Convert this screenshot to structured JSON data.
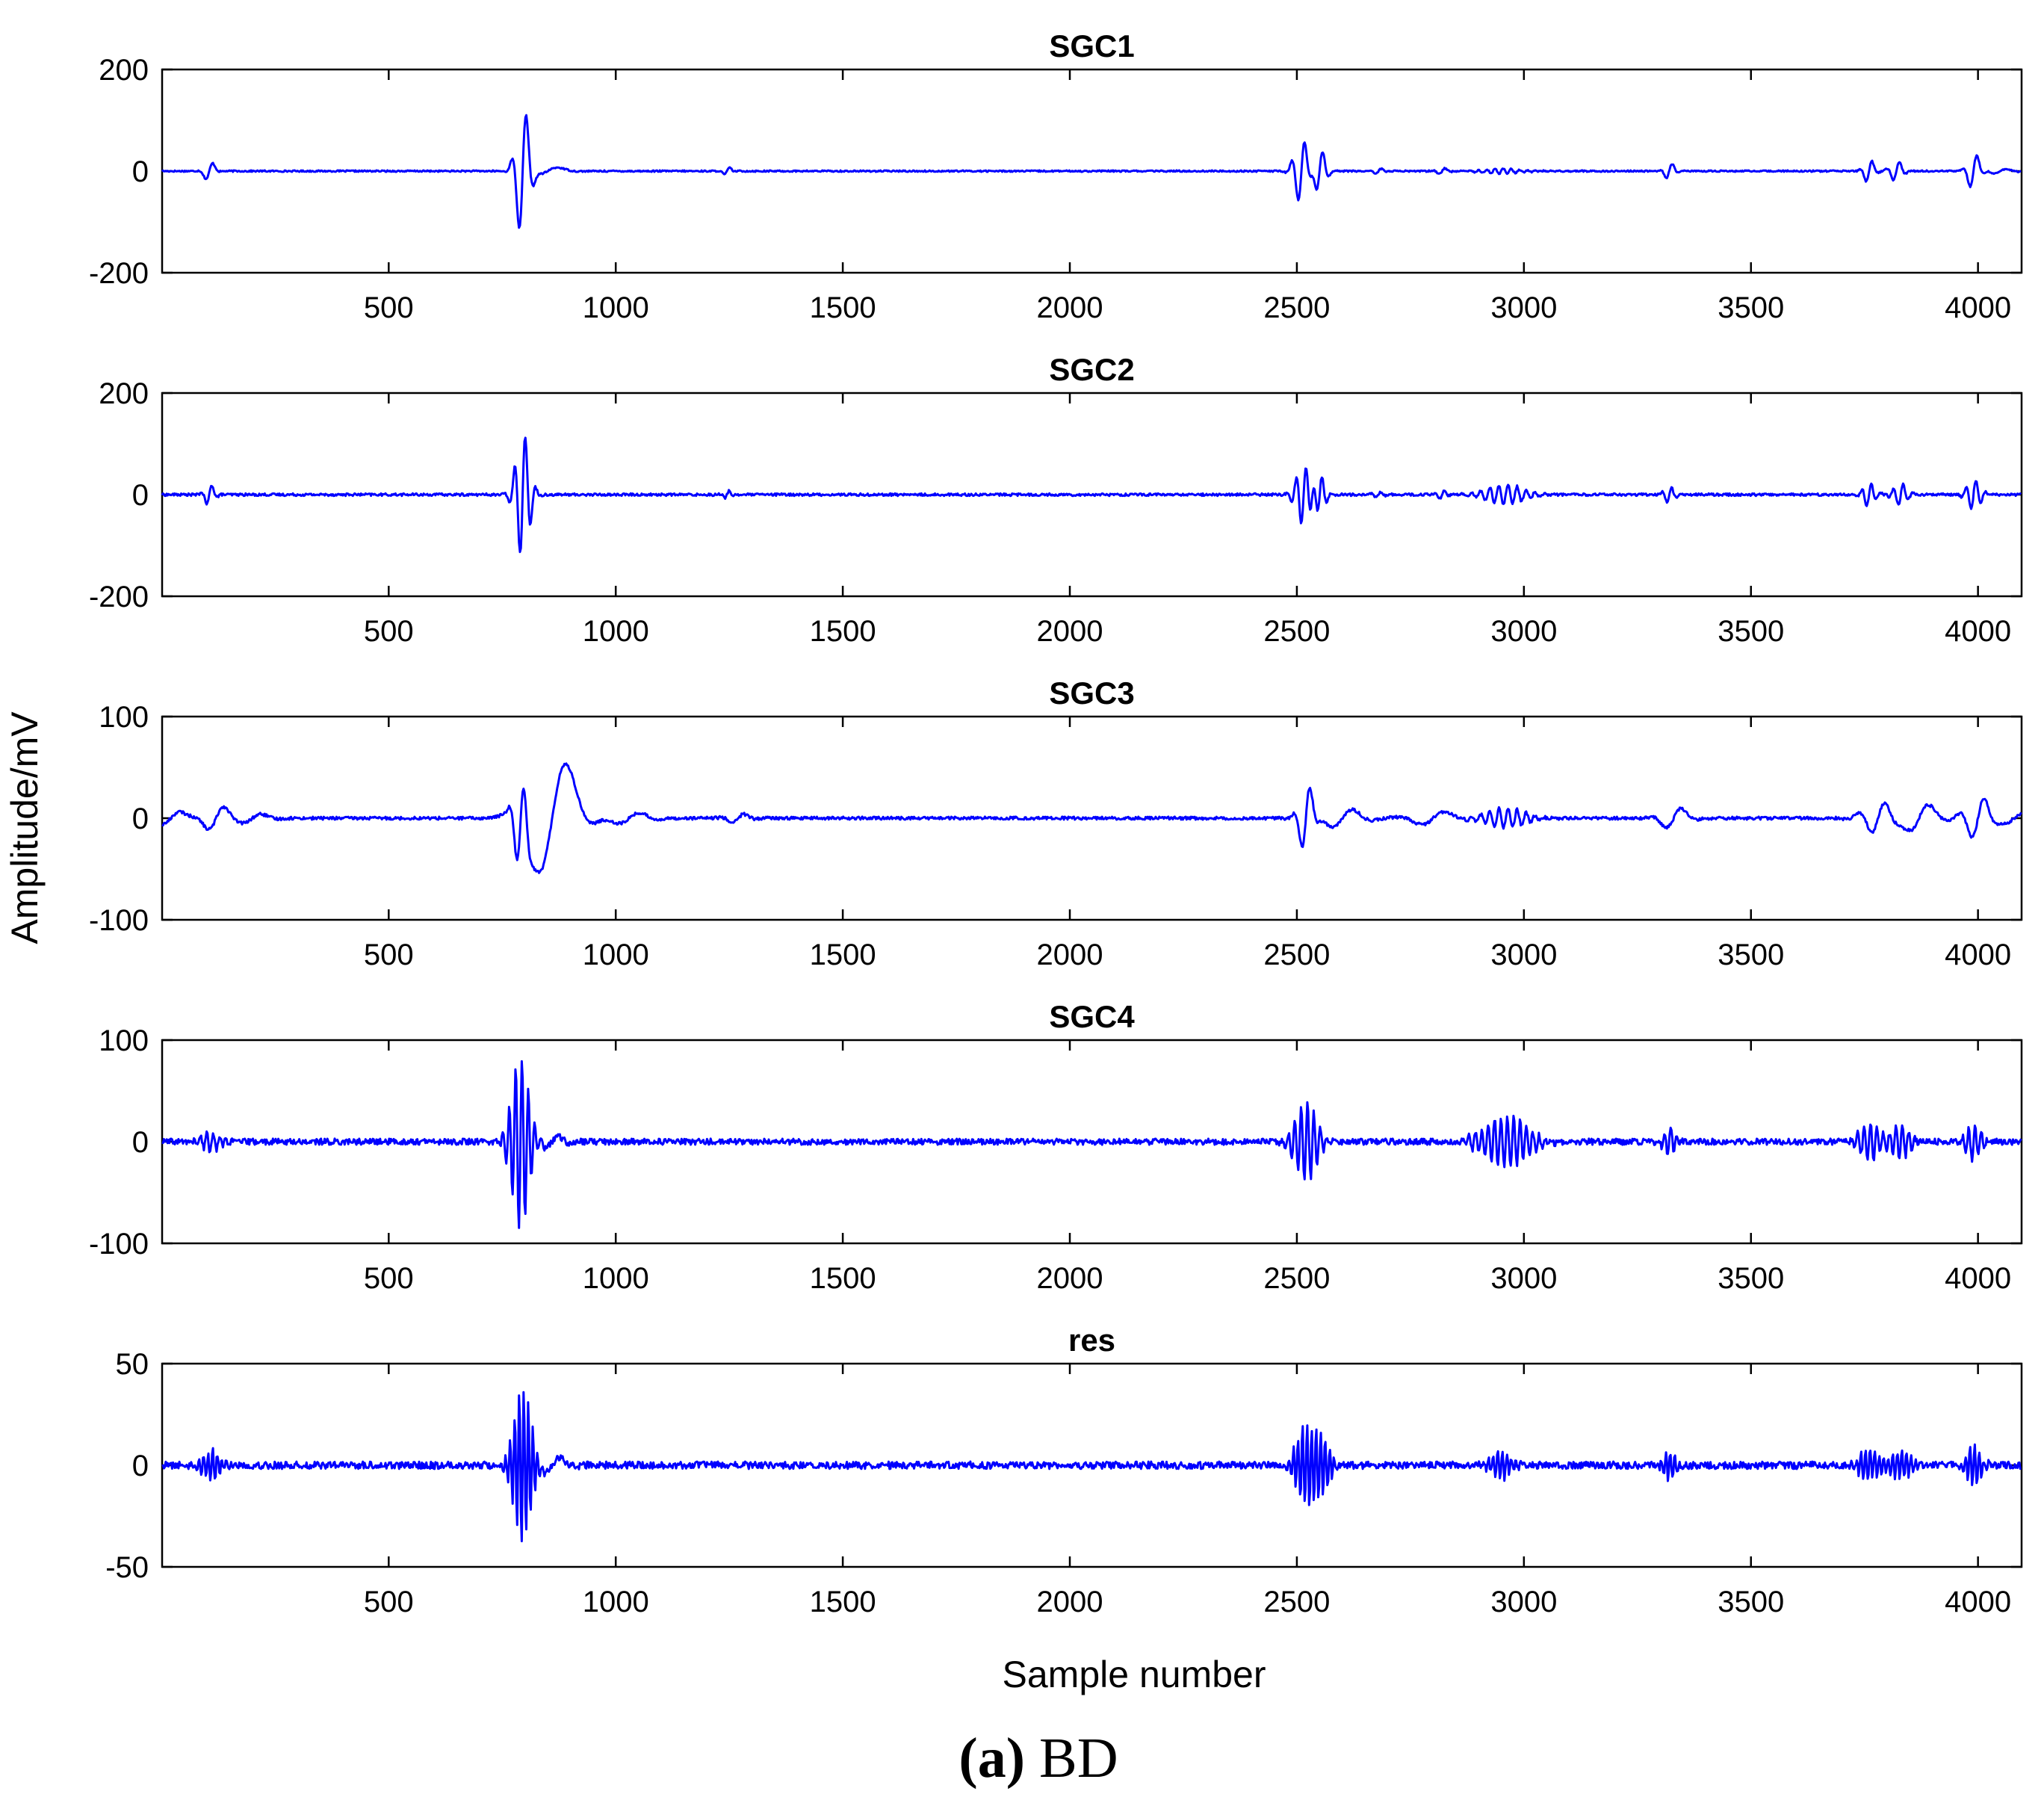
{
  "figure": {
    "xlabel": "Sample number",
    "ylabel": "Amplitude/mV",
    "caption_tag": "(a)",
    "caption_text": "BD"
  },
  "chart_data": [
    {
      "type": "line",
      "title": "SGC1",
      "xlim": [
        1,
        4096
      ],
      "ylim": [
        -200,
        200
      ],
      "xticks": [
        500,
        1000,
        1500,
        2000,
        2500,
        3000,
        3500,
        4000
      ],
      "yticks": [
        -200,
        0,
        200
      ],
      "line_color": "#0000ff",
      "noise": 1.5,
      "events": [
        {
          "c": 105,
          "a": 22,
          "f": 40,
          "w": 10
        },
        {
          "c": 795,
          "a": 135,
          "f": 35,
          "w": 13
        },
        {
          "c": 850,
          "a": 10,
          "f": 120,
          "w": 30
        },
        {
          "c": 1245,
          "a": 9,
          "f": 30,
          "w": 8
        },
        {
          "c": 2510,
          "a": 65,
          "f": 30,
          "w": 14
        },
        {
          "c": 2550,
          "a": 45,
          "f": 30,
          "w": 12
        },
        {
          "c": 2680,
          "a": 6,
          "f": 30,
          "w": 10
        },
        {
          "c": 2820,
          "a": 7,
          "f": 30,
          "w": 10
        },
        {
          "c": 2950,
          "a": 5,
          "f": 18,
          "w": 40
        },
        {
          "c": 3320,
          "a": 18,
          "f": 30,
          "w": 10
        },
        {
          "c": 3760,
          "a": 25,
          "f": 30,
          "w": 10
        },
        {
          "c": 3820,
          "a": 22,
          "f": 30,
          "w": 12
        },
        {
          "c": 3990,
          "a": 38,
          "f": 35,
          "w": 12
        },
        {
          "c": 4050,
          "a": 6,
          "f": 60,
          "w": 20
        }
      ]
    },
    {
      "type": "line",
      "title": "SGC2",
      "xlim": [
        1,
        4096
      ],
      "ylim": [
        -200,
        200
      ],
      "xticks": [
        500,
        1000,
        1500,
        2000,
        2500,
        3000,
        3500,
        4000
      ],
      "yticks": [
        -200,
        0,
        200
      ],
      "line_color": "#0000ff",
      "noise": 2.5,
      "events": [
        {
          "c": 105,
          "a": 22,
          "f": 26,
          "w": 10
        },
        {
          "c": 795,
          "a": 125,
          "f": 24,
          "w": 14
        },
        {
          "c": 1245,
          "a": 9,
          "f": 22,
          "w": 8
        },
        {
          "c": 2515,
          "a": 60,
          "f": 22,
          "w": 15
        },
        {
          "c": 2550,
          "a": 40,
          "f": 22,
          "w": 12
        },
        {
          "c": 2680,
          "a": 6,
          "f": 22,
          "w": 10
        },
        {
          "c": 2820,
          "a": 8,
          "f": 22,
          "w": 10
        },
        {
          "c": 2960,
          "a": 20,
          "f": 20,
          "w": 40
        },
        {
          "c": 3320,
          "a": 17,
          "f": 22,
          "w": 10
        },
        {
          "c": 3760,
          "a": 24,
          "f": 22,
          "w": 12
        },
        {
          "c": 3830,
          "a": 22,
          "f": 22,
          "w": 14
        },
        {
          "c": 3990,
          "a": 30,
          "f": 22,
          "w": 14
        }
      ]
    },
    {
      "type": "line",
      "title": "SGC3",
      "xlim": [
        1,
        4096
      ],
      "ylim": [
        -100,
        100
      ],
      "xticks": [
        500,
        1000,
        1500,
        2000,
        2500,
        3000,
        3500,
        4000
      ],
      "yticks": [
        -100,
        0,
        100
      ],
      "line_color": "#0000ff",
      "noise": 1.5,
      "events": [
        {
          "c": 20,
          "a": 8,
          "f": 100,
          "w": 30
        },
        {
          "c": 120,
          "a": 14,
          "f": 80,
          "w": 25
        },
        {
          "c": 200,
          "a": 5,
          "f": 90,
          "w": 30
        },
        {
          "c": 790,
          "a": 55,
          "f": 38,
          "w": 12
        },
        {
          "c": 860,
          "a": 70,
          "f": 150,
          "w": 45
        },
        {
          "c": 1030,
          "a": 6,
          "f": 100,
          "w": 40
        },
        {
          "c": 1270,
          "a": 5,
          "f": 60,
          "w": 20
        },
        {
          "c": 2520,
          "a": 35,
          "f": 40,
          "w": 14
        },
        {
          "c": 2600,
          "a": 10,
          "f": 100,
          "w": 40
        },
        {
          "c": 2800,
          "a": 8,
          "f": 120,
          "w": 40
        },
        {
          "c": 2960,
          "a": 10,
          "f": 20,
          "w": 40
        },
        {
          "c": 3330,
          "a": 12,
          "f": 80,
          "w": 25
        },
        {
          "c": 3780,
          "a": 15,
          "f": 60,
          "w": 30
        },
        {
          "c": 3870,
          "a": 16,
          "f": 100,
          "w": 35
        },
        {
          "c": 4000,
          "a": 22,
          "f": 60,
          "w": 25
        },
        {
          "c": 4080,
          "a": 6,
          "f": 90,
          "w": 30
        }
      ]
    },
    {
      "type": "line",
      "title": "SGC4",
      "xlim": [
        1,
        4096
      ],
      "ylim": [
        -100,
        100
      ],
      "xticks": [
        500,
        1000,
        1500,
        2000,
        2500,
        3000,
        3500,
        4000
      ],
      "yticks": [
        -100,
        0,
        100
      ],
      "line_color": "#0000ff",
      "noise": 3,
      "events": [
        {
          "c": 110,
          "a": 10,
          "f": 14,
          "w": 18
        },
        {
          "c": 790,
          "a": 85,
          "f": 14,
          "w": 18
        },
        {
          "c": 860,
          "a": 6,
          "f": 60,
          "w": 25
        },
        {
          "c": 2520,
          "a": 40,
          "f": 14,
          "w": 22
        },
        {
          "c": 2960,
          "a": 26,
          "f": 14,
          "w": 45
        },
        {
          "c": 3320,
          "a": 13,
          "f": 14,
          "w": 12
        },
        {
          "c": 3760,
          "a": 18,
          "f": 14,
          "w": 20
        },
        {
          "c": 3830,
          "a": 16,
          "f": 14,
          "w": 20
        },
        {
          "c": 3990,
          "a": 18,
          "f": 14,
          "w": 15
        }
      ]
    },
    {
      "type": "line",
      "title": "res",
      "xlim": [
        1,
        4096
      ],
      "ylim": [
        -50,
        50
      ],
      "xticks": [
        500,
        1000,
        1500,
        2000,
        2500,
        3000,
        3500,
        4000
      ],
      "yticks": [
        -50,
        0,
        50
      ],
      "line_color": "#0000ff",
      "noise": 1.8,
      "events": [
        {
          "c": 110,
          "a": 8,
          "f": 10,
          "w": 18
        },
        {
          "c": 795,
          "a": 38,
          "f": 10,
          "w": 18
        },
        {
          "c": 860,
          "a": 5,
          "f": 80,
          "w": 25
        },
        {
          "c": 2520,
          "a": 20,
          "f": 10,
          "w": 20
        },
        {
          "c": 2560,
          "a": 12,
          "f": 10,
          "w": 15
        },
        {
          "c": 2950,
          "a": 7,
          "f": 10,
          "w": 20
        },
        {
          "c": 3320,
          "a": 7,
          "f": 10,
          "w": 12
        },
        {
          "c": 3760,
          "a": 8,
          "f": 10,
          "w": 20
        },
        {
          "c": 3830,
          "a": 7,
          "f": 10,
          "w": 20
        },
        {
          "c": 3990,
          "a": 10,
          "f": 10,
          "w": 15
        }
      ]
    }
  ]
}
